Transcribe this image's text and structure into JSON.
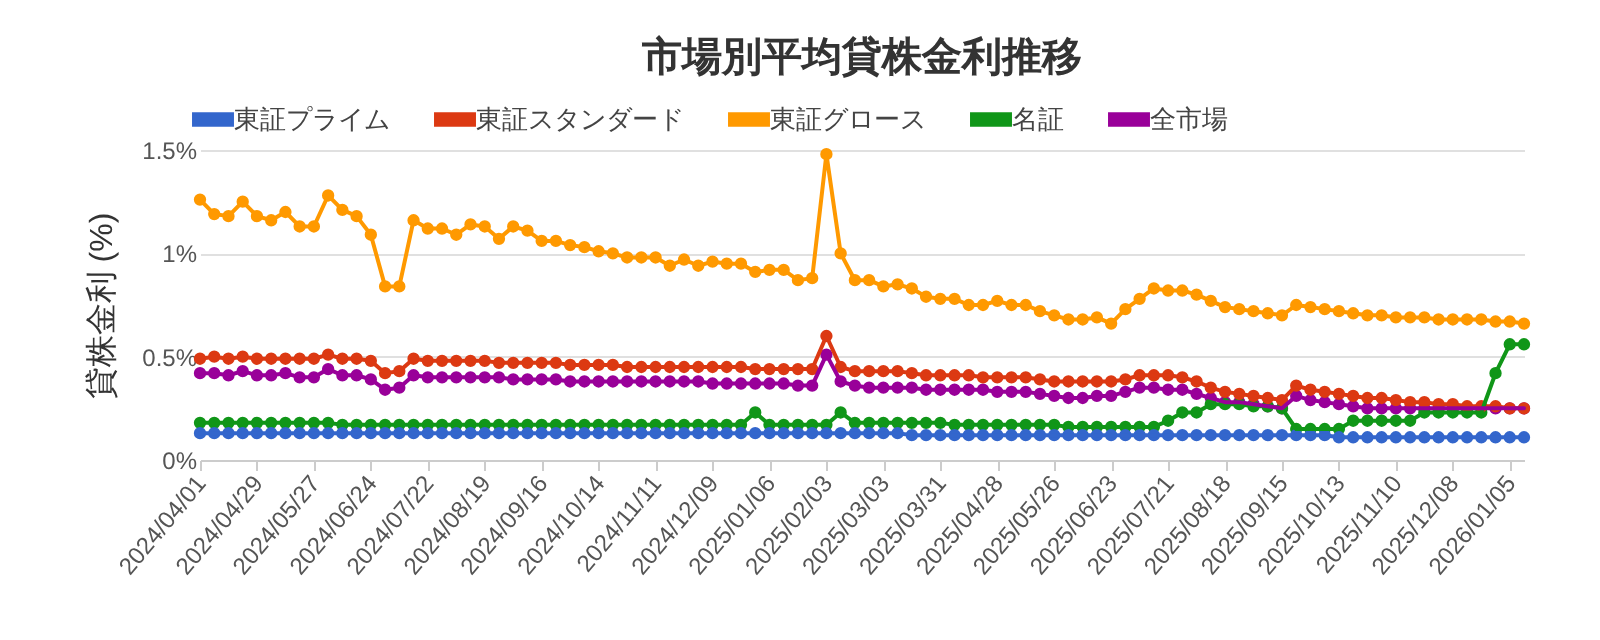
{
  "chart_data": {
    "type": "line",
    "title": "市場別平均貸株金利推移",
    "ylabel": "貸株金利 (%)",
    "x": [
      "2024-04-01",
      "2024-04-08",
      "2024-04-15",
      "2024-04-22",
      "2024-04-29",
      "2024-05-06",
      "2024-05-13",
      "2024-05-20",
      "2024-05-27",
      "2024-06-03",
      "2024-06-10",
      "2024-06-17",
      "2024-06-24",
      "2024-07-01",
      "2024-07-08",
      "2024-07-15",
      "2024-07-22",
      "2024-07-29",
      "2024-08-05",
      "2024-08-12",
      "2024-08-19",
      "2024-08-26",
      "2024-09-02",
      "2024-09-09",
      "2024-09-16",
      "2024-09-23",
      "2024-09-30",
      "2024-10-07",
      "2024-10-14",
      "2024-10-21",
      "2024-10-28",
      "2024-11-04",
      "2024-11-11",
      "2024-11-18",
      "2024-11-25",
      "2024-12-02",
      "2024-12-09",
      "2024-12-16",
      "2024-12-23",
      "2024-12-30",
      "2025-01-06",
      "2025-01-13",
      "2025-01-20",
      "2025-01-27",
      "2025-02-03",
      "2025-02-10",
      "2025-02-17",
      "2025-02-24",
      "2025-03-03",
      "2025-03-10",
      "2025-03-17",
      "2025-03-24",
      "2025-03-31",
      "2025-04-07",
      "2025-04-14",
      "2025-04-21",
      "2025-04-28",
      "2025-05-05",
      "2025-05-12",
      "2025-05-19",
      "2025-05-26",
      "2025-06-02",
      "2025-06-09",
      "2025-06-16",
      "2025-06-23",
      "2025-06-30",
      "2025-07-07",
      "2025-07-14",
      "2025-07-21",
      "2025-07-28",
      "2025-08-04",
      "2025-08-11",
      "2025-08-18",
      "2025-08-25",
      "2025-09-01",
      "2025-09-08",
      "2025-09-15",
      "2025-09-22",
      "2025-09-29",
      "2025-10-06",
      "2025-10-13",
      "2025-10-20",
      "2025-10-27",
      "2025-11-03",
      "2025-11-10",
      "2025-11-17",
      "2025-11-24",
      "2025-12-01",
      "2025-12-08",
      "2025-12-15",
      "2025-12-22",
      "2025-12-29",
      "2026-01-05",
      "2026-01-12"
    ],
    "series": [
      {
        "name": "東証プライム",
        "color": "#3366cc",
        "values": [
          0.13,
          0.13,
          0.13,
          0.13,
          0.13,
          0.13,
          0.13,
          0.13,
          0.13,
          0.13,
          0.13,
          0.13,
          0.13,
          0.13,
          0.13,
          0.13,
          0.13,
          0.13,
          0.13,
          0.13,
          0.13,
          0.13,
          0.13,
          0.13,
          0.13,
          0.13,
          0.13,
          0.13,
          0.13,
          0.13,
          0.13,
          0.13,
          0.13,
          0.13,
          0.13,
          0.13,
          0.13,
          0.13,
          0.13,
          0.13,
          0.13,
          0.13,
          0.13,
          0.13,
          0.13,
          0.13,
          0.13,
          0.13,
          0.13,
          0.13,
          0.12,
          0.12,
          0.12,
          0.12,
          0.12,
          0.12,
          0.12,
          0.12,
          0.12,
          0.12,
          0.12,
          0.12,
          0.12,
          0.12,
          0.12,
          0.12,
          0.12,
          0.12,
          0.12,
          0.12,
          0.12,
          0.12,
          0.12,
          0.12,
          0.12,
          0.12,
          0.12,
          0.12,
          0.12,
          0.12,
          0.11,
          0.11,
          0.11,
          0.11,
          0.11,
          0.11,
          0.11,
          0.11,
          0.11,
          0.11,
          0.11,
          0.11,
          0.11,
          0.11
        ]
      },
      {
        "name": "東証スタンダード",
        "color": "#dc3912",
        "values": [
          0.49,
          0.5,
          0.49,
          0.5,
          0.49,
          0.49,
          0.49,
          0.49,
          0.49,
          0.51,
          0.49,
          0.49,
          0.48,
          0.42,
          0.43,
          0.49,
          0.48,
          0.48,
          0.48,
          0.48,
          0.48,
          0.47,
          0.47,
          0.47,
          0.47,
          0.47,
          0.46,
          0.46,
          0.46,
          0.46,
          0.45,
          0.45,
          0.45,
          0.45,
          0.45,
          0.45,
          0.45,
          0.45,
          0.45,
          0.44,
          0.44,
          0.44,
          0.44,
          0.44,
          0.6,
          0.45,
          0.43,
          0.43,
          0.43,
          0.43,
          0.42,
          0.41,
          0.41,
          0.41,
          0.41,
          0.4,
          0.4,
          0.4,
          0.4,
          0.39,
          0.38,
          0.38,
          0.38,
          0.38,
          0.38,
          0.39,
          0.41,
          0.41,
          0.41,
          0.4,
          0.38,
          0.35,
          0.33,
          0.32,
          0.31,
          0.3,
          0.29,
          0.36,
          0.34,
          0.33,
          0.32,
          0.31,
          0.3,
          0.3,
          0.29,
          0.28,
          0.28,
          0.27,
          0.27,
          0.26,
          0.26,
          0.26,
          0.25,
          0.25
        ]
      },
      {
        "name": "東証グロース",
        "color": "#ff9900",
        "values": [
          1.26,
          1.19,
          1.18,
          1.25,
          1.18,
          1.16,
          1.2,
          1.13,
          1.13,
          1.28,
          1.21,
          1.18,
          1.09,
          0.84,
          0.84,
          1.16,
          1.12,
          1.12,
          1.09,
          1.14,
          1.13,
          1.07,
          1.13,
          1.11,
          1.06,
          1.06,
          1.04,
          1.03,
          1.01,
          1.0,
          0.98,
          0.98,
          0.98,
          0.94,
          0.97,
          0.94,
          0.96,
          0.95,
          0.95,
          0.91,
          0.92,
          0.92,
          0.87,
          0.88,
          1.48,
          1.0,
          0.87,
          0.87,
          0.84,
          0.85,
          0.83,
          0.79,
          0.78,
          0.78,
          0.75,
          0.75,
          0.77,
          0.75,
          0.75,
          0.72,
          0.7,
          0.68,
          0.68,
          0.69,
          0.66,
          0.73,
          0.78,
          0.83,
          0.82,
          0.82,
          0.8,
          0.77,
          0.74,
          0.73,
          0.72,
          0.71,
          0.7,
          0.75,
          0.74,
          0.73,
          0.72,
          0.71,
          0.7,
          0.7,
          0.69,
          0.69,
          0.69,
          0.68,
          0.68,
          0.68,
          0.68,
          0.67,
          0.67,
          0.66
        ]
      },
      {
        "name": "名証",
        "color": "#109618",
        "values": [
          0.18,
          0.18,
          0.18,
          0.18,
          0.18,
          0.18,
          0.18,
          0.18,
          0.18,
          0.18,
          0.17,
          0.17,
          0.17,
          0.17,
          0.17,
          0.17,
          0.17,
          0.17,
          0.17,
          0.17,
          0.17,
          0.17,
          0.17,
          0.17,
          0.17,
          0.17,
          0.17,
          0.17,
          0.17,
          0.17,
          0.17,
          0.17,
          0.17,
          0.17,
          0.17,
          0.17,
          0.17,
          0.17,
          0.17,
          0.23,
          0.17,
          0.17,
          0.17,
          0.17,
          0.17,
          0.23,
          0.18,
          0.18,
          0.18,
          0.18,
          0.18,
          0.18,
          0.18,
          0.17,
          0.17,
          0.17,
          0.17,
          0.17,
          0.17,
          0.17,
          0.17,
          0.16,
          0.16,
          0.16,
          0.16,
          0.16,
          0.16,
          0.16,
          0.19,
          0.23,
          0.23,
          0.27,
          0.27,
          0.27,
          0.26,
          0.26,
          0.25,
          0.15,
          0.15,
          0.15,
          0.15,
          0.19,
          0.19,
          0.19,
          0.19,
          0.19,
          0.23,
          0.23,
          0.23,
          0.23,
          0.23,
          0.42,
          0.56,
          0.56
        ]
      },
      {
        "name": "全市場",
        "color": "#990099",
        "values": [
          0.42,
          0.42,
          0.41,
          0.43,
          0.41,
          0.41,
          0.42,
          0.4,
          0.4,
          0.44,
          0.41,
          0.41,
          0.39,
          0.34,
          0.35,
          0.41,
          0.4,
          0.4,
          0.4,
          0.4,
          0.4,
          0.4,
          0.39,
          0.39,
          0.39,
          0.39,
          0.38,
          0.38,
          0.38,
          0.38,
          0.38,
          0.38,
          0.38,
          0.38,
          0.38,
          0.38,
          0.37,
          0.37,
          0.37,
          0.37,
          0.37,
          0.37,
          0.36,
          0.36,
          0.51,
          0.38,
          0.36,
          0.35,
          0.35,
          0.35,
          0.35,
          0.34,
          0.34,
          0.34,
          0.34,
          0.34,
          0.33,
          0.33,
          0.33,
          0.32,
          0.31,
          0.3,
          0.3,
          0.31,
          0.31,
          0.33,
          0.35,
          0.35,
          0.34,
          0.34,
          0.32,
          0.3,
          0.28,
          0.28,
          0.27,
          0.26,
          0.25,
          0.31,
          0.29,
          0.28,
          0.27,
          0.26,
          0.25,
          0.25,
          0.25,
          0.25,
          0.25,
          0.25,
          0.25,
          0.25,
          0.25,
          0.25,
          0.25,
          0.25
        ]
      }
    ],
    "xlim": [
      "2024-04-01",
      "2026-01-12"
    ],
    "xticks": [
      {
        "value": "2024-04-01",
        "label": "2024/04/01"
      },
      {
        "value": "2024-04-29",
        "label": "2024/04/29"
      },
      {
        "value": "2024-05-27",
        "label": "2024/05/27"
      },
      {
        "value": "2024-06-24",
        "label": "2024/06/24"
      },
      {
        "value": "2024-07-22",
        "label": "2024/07/22"
      },
      {
        "value": "2024-08-19",
        "label": "2024/08/19"
      },
      {
        "value": "2024-09-16",
        "label": "2024/09/16"
      },
      {
        "value": "2024-10-14",
        "label": "2024/10/14"
      },
      {
        "value": "2024-11-11",
        "label": "2024/11/11"
      },
      {
        "value": "2024-12-09",
        "label": "2024/12/09"
      },
      {
        "value": "2025-01-06",
        "label": "2025/01/06"
      },
      {
        "value": "2025-02-03",
        "label": "2025/02/03"
      },
      {
        "value": "2025-03-03",
        "label": "2025/03/03"
      },
      {
        "value": "2025-03-31",
        "label": "2025/03/31"
      },
      {
        "value": "2025-04-28",
        "label": "2025/04/28"
      },
      {
        "value": "2025-05-26",
        "label": "2025/05/26"
      },
      {
        "value": "2025-06-23",
        "label": "2025/06/23"
      },
      {
        "value": "2025-07-21",
        "label": "2025/07/21"
      },
      {
        "value": "2025-08-18",
        "label": "2025/08/18"
      },
      {
        "value": "2025-09-15",
        "label": "2025/09/15"
      },
      {
        "value": "2025-10-13",
        "label": "2025/10/13"
      },
      {
        "value": "2025-11-10",
        "label": "2025/11/10"
      },
      {
        "value": "2025-12-08",
        "label": "2025/12/08"
      },
      {
        "value": "2026-01-05",
        "label": "2026/01/05"
      }
    ],
    "ylim": [
      0,
      1.5
    ],
    "yticks": [
      {
        "value": 0,
        "label": "0%"
      },
      {
        "value": 0.5,
        "label": "0.5%"
      },
      {
        "value": 1,
        "label": "1%"
      },
      {
        "value": 1.5,
        "label": "1.5%"
      }
    ],
    "grid": "y",
    "legend": "top",
    "marker": "circle",
    "line_style": "solid"
  }
}
